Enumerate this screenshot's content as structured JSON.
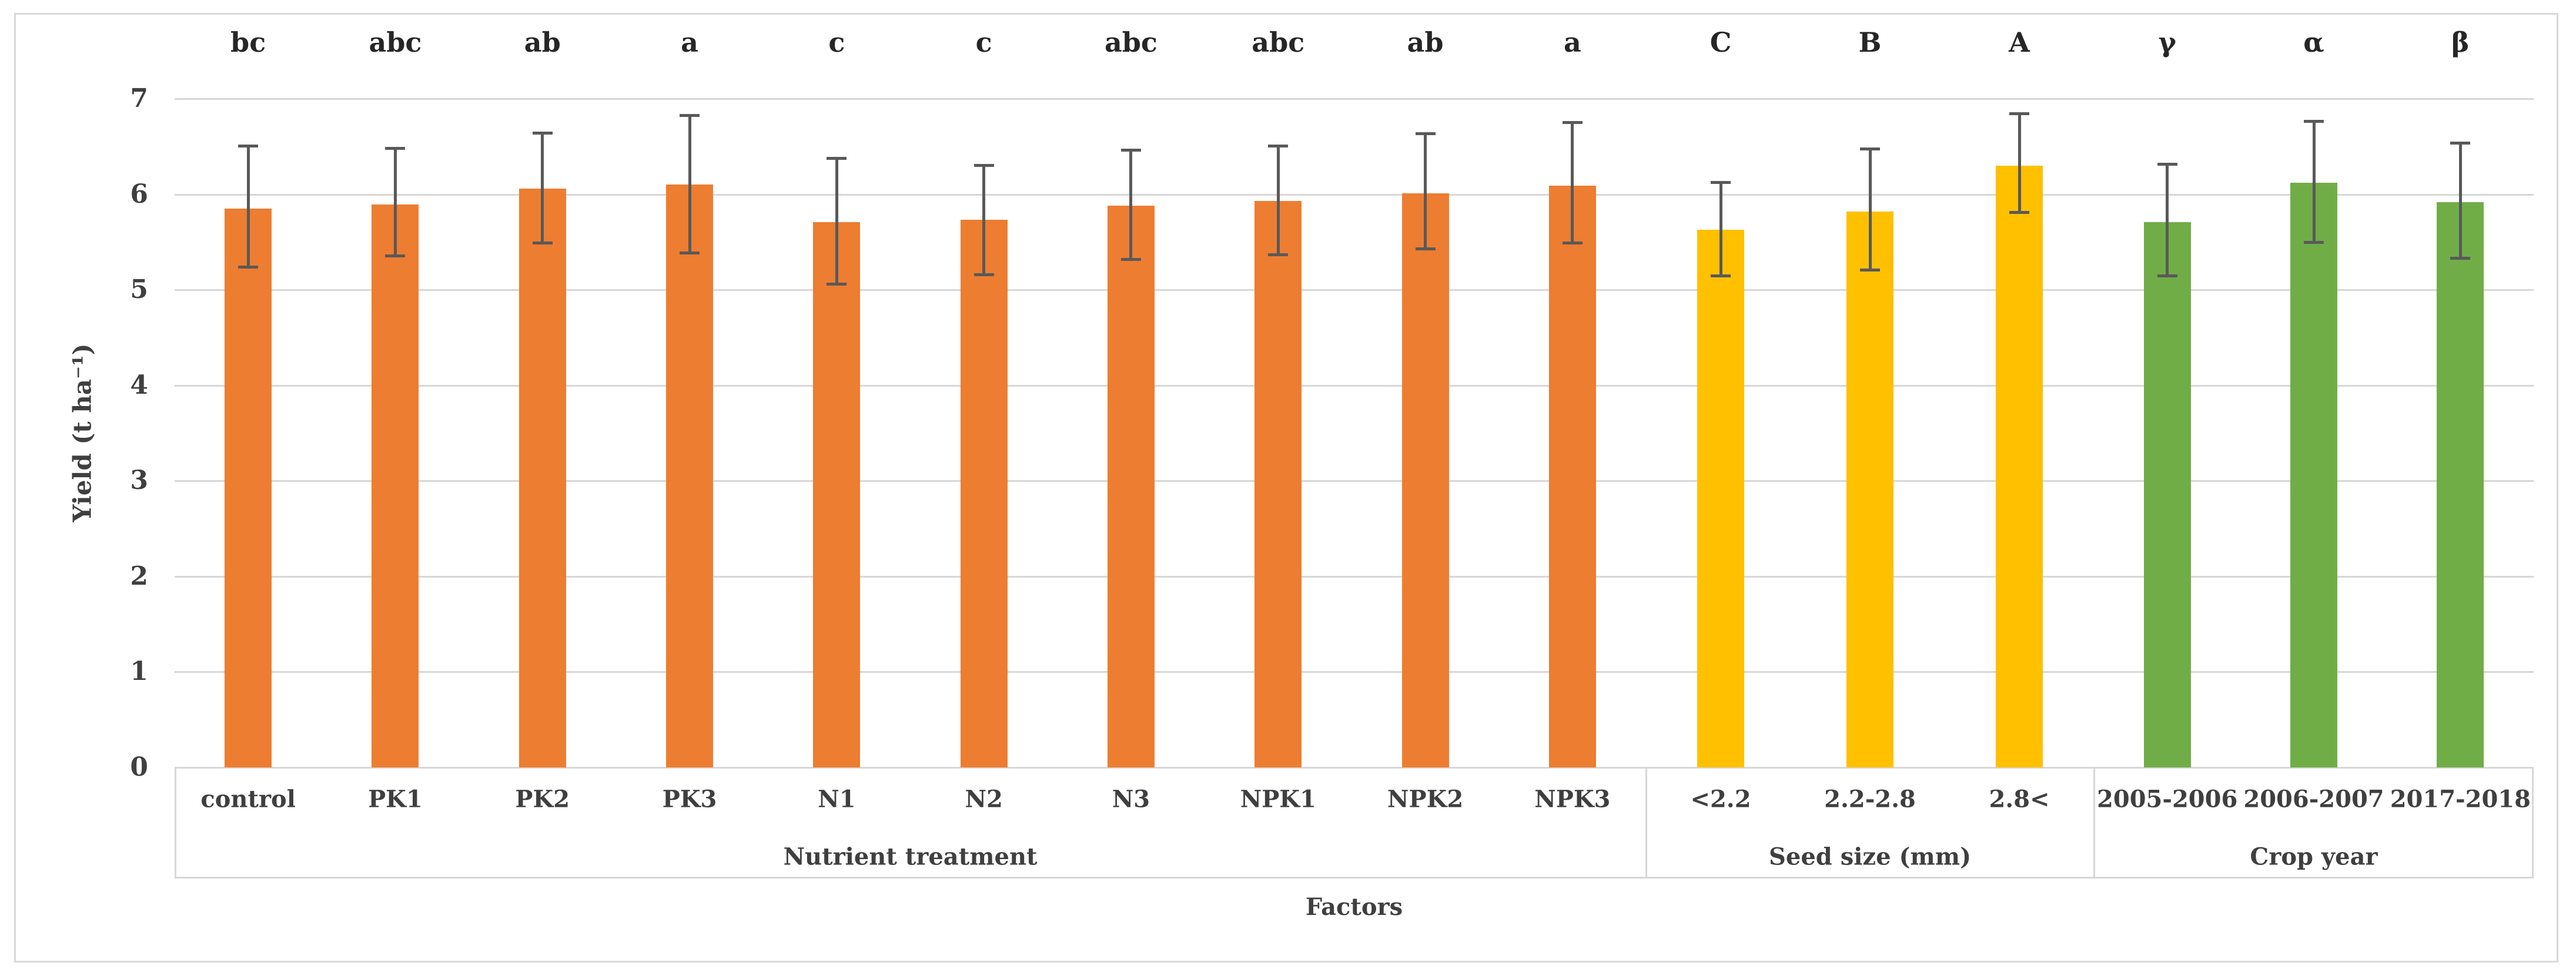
{
  "chart_data": {
    "type": "bar",
    "title": "",
    "ylabel": "Yield (t ha⁻¹)",
    "xlabel": "Factors",
    "ylim": [
      0,
      7
    ],
    "yticks": [
      0,
      1,
      2,
      3,
      4,
      5,
      6,
      7
    ],
    "grid": true,
    "legend_position": "none",
    "error_bar_color": "#595959",
    "gridline_color": "#D7D7D7",
    "text_color": "#3F3F3F",
    "groups": [
      {
        "label": "Nutrient treatment",
        "color": "#ED7D31",
        "categories": [
          "control",
          "PK1",
          "PK2",
          "PK3",
          "N1",
          "N2",
          "N3",
          "NPK1",
          "NPK2",
          "NPK3"
        ],
        "values": [
          5.85,
          5.89,
          6.06,
          6.1,
          5.71,
          5.73,
          5.88,
          5.93,
          6.01,
          6.09
        ],
        "error_low": [
          5.24,
          5.36,
          5.49,
          5.39,
          5.06,
          5.16,
          5.32,
          5.37,
          5.43,
          5.49
        ],
        "error_high": [
          6.5,
          6.48,
          6.64,
          6.82,
          6.37,
          6.3,
          6.46,
          6.5,
          6.63,
          6.75
        ],
        "sig_letters": [
          "bc",
          "abc",
          "ab",
          "a",
          "c",
          "c",
          "abc",
          "abc",
          "ab",
          "a"
        ]
      },
      {
        "label": "Seed size (mm)",
        "color": "#FFC000",
        "categories": [
          "<2.2",
          "2.2-2.8",
          "2.8<"
        ],
        "values": [
          5.63,
          5.82,
          6.3
        ],
        "error_low": [
          5.15,
          5.21,
          5.81
        ],
        "error_high": [
          6.12,
          6.47,
          6.84
        ],
        "sig_letters": [
          "C",
          "B",
          "A"
        ]
      },
      {
        "label": "Crop year",
        "color": "#70AD47",
        "categories": [
          "2005-2006",
          "2006-2007",
          "2017-2018"
        ],
        "values": [
          5.71,
          6.12,
          5.92
        ],
        "error_low": [
          5.15,
          5.5,
          5.33
        ],
        "error_high": [
          6.31,
          6.76,
          6.53
        ],
        "sig_letters": [
          "γ",
          "α",
          "β"
        ]
      }
    ]
  }
}
